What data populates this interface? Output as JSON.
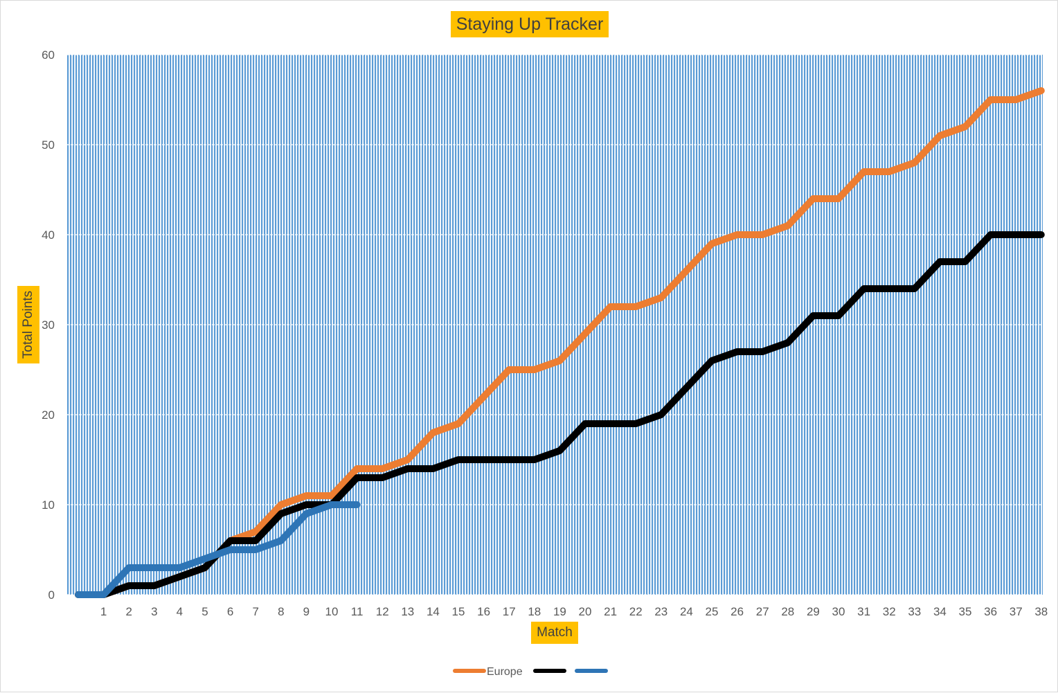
{
  "chart_data": {
    "type": "line",
    "title": "Staying Up Tracker",
    "xlabel": "Match",
    "ylabel": "Total Points",
    "ylim": [
      0,
      60
    ],
    "yticks": [
      0,
      10,
      20,
      30,
      40,
      50,
      60
    ],
    "x": [
      0,
      1,
      2,
      3,
      4,
      5,
      6,
      7,
      8,
      9,
      10,
      11,
      12,
      13,
      14,
      15,
      16,
      17,
      18,
      19,
      20,
      21,
      22,
      23,
      24,
      25,
      26,
      27,
      28,
      29,
      30,
      31,
      32,
      33,
      34,
      35,
      36,
      37,
      38
    ],
    "xtick_labels": [
      "1",
      "2",
      "3",
      "4",
      "5",
      "6",
      "7",
      "8",
      "9",
      "10",
      "11",
      "12",
      "13",
      "14",
      "15",
      "16",
      "17",
      "18",
      "19",
      "20",
      "21",
      "22",
      "23",
      "24",
      "25",
      "26",
      "27",
      "28",
      "29",
      "30",
      "31",
      "32",
      "33",
      "34",
      "35",
      "36",
      "37",
      "38"
    ],
    "grid": true,
    "plot_background": "vertical blue stripes",
    "legend_position": "bottom",
    "series": [
      {
        "name": "Europe",
        "color": "#ed7d31",
        "x": [
          0,
          1,
          2,
          3,
          4,
          5,
          6,
          7,
          8,
          9,
          10,
          11,
          12,
          13,
          14,
          15,
          16,
          17,
          18,
          19,
          20,
          21,
          22,
          23,
          24,
          25,
          26,
          27,
          28,
          29,
          30,
          31,
          32,
          33,
          34,
          35,
          36,
          37,
          38
        ],
        "values": [
          0,
          0,
          1,
          1,
          2,
          3,
          6,
          7,
          10,
          11,
          11,
          14,
          14,
          15,
          18,
          19,
          22,
          25,
          25,
          26,
          29,
          32,
          32,
          33,
          36,
          39,
          40,
          40,
          41,
          44,
          44,
          47,
          47,
          48,
          51,
          52,
          55,
          55,
          56
        ]
      },
      {
        "name": "",
        "color": "#000000",
        "x": [
          0,
          1,
          2,
          3,
          4,
          5,
          6,
          7,
          8,
          9,
          10,
          11,
          12,
          13,
          14,
          15,
          16,
          17,
          18,
          19,
          20,
          21,
          22,
          23,
          24,
          25,
          26,
          27,
          28,
          29,
          30,
          31,
          32,
          33,
          34,
          35,
          36,
          37,
          38
        ],
        "values": [
          0,
          0,
          1,
          1,
          2,
          3,
          6,
          6,
          9,
          10,
          10,
          13,
          13,
          14,
          14,
          15,
          15,
          15,
          15,
          16,
          19,
          19,
          19,
          20,
          23,
          26,
          27,
          27,
          28,
          31,
          31,
          34,
          34,
          34,
          37,
          37,
          40,
          40,
          40
        ]
      },
      {
        "name": "",
        "color": "#2e75b6",
        "x": [
          0,
          1,
          2,
          3,
          4,
          5,
          6,
          7,
          8,
          9,
          10,
          11
        ],
        "values": [
          0,
          0,
          3,
          3,
          3,
          4,
          5,
          5,
          6,
          9,
          10,
          10
        ]
      }
    ]
  }
}
